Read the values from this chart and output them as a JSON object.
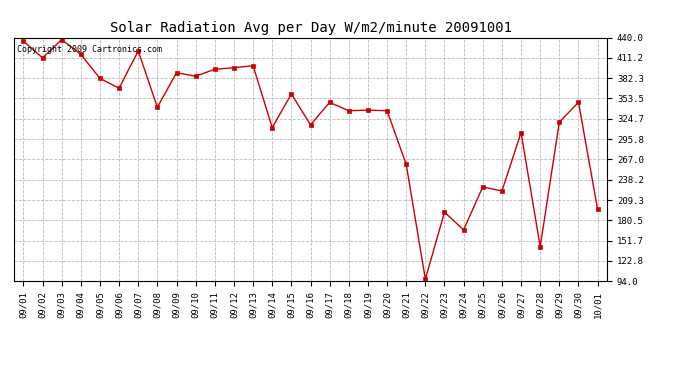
{
  "title": "Solar Radiation Avg per Day W/m2/minute 20091001",
  "copyright_text": "Copyright 2009 Cartronics.com",
  "dates": [
    "09/01",
    "09/02",
    "09/03",
    "09/04",
    "09/05",
    "09/06",
    "09/07",
    "09/08",
    "09/09",
    "09/10",
    "09/11",
    "09/12",
    "09/13",
    "09/14",
    "09/15",
    "09/16",
    "09/17",
    "09/18",
    "09/19",
    "09/20",
    "09/21",
    "09/22",
    "09/23",
    "09/24",
    "09/25",
    "09/26",
    "09/27",
    "09/28",
    "09/29",
    "09/30",
    "10/01"
  ],
  "values": [
    435,
    411,
    437,
    416,
    382,
    368,
    421,
    341,
    390,
    385,
    395,
    397,
    400,
    312,
    360,
    316,
    348,
    336,
    337,
    336,
    260,
    97,
    192,
    167,
    228,
    222,
    305,
    143,
    320,
    348,
    196
  ],
  "ylim": [
    94.0,
    440.0
  ],
  "yticks": [
    94.0,
    122.8,
    151.7,
    180.5,
    209.3,
    238.2,
    267.0,
    295.8,
    324.7,
    353.5,
    382.3,
    411.2,
    440.0
  ],
  "line_color": "#cc0000",
  "marker": "s",
  "marker_size": 2.5,
  "background_color": "#ffffff",
  "grid_color": "#bbbbbb",
  "title_fontsize": 10,
  "tick_fontsize": 6.5,
  "copyright_fontsize": 6
}
